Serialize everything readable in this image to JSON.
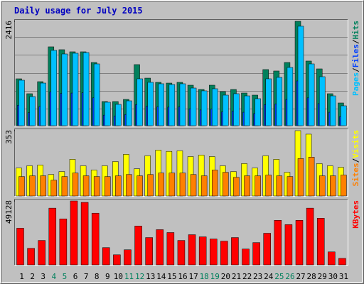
{
  "chart_data": [
    {
      "type": "bar",
      "title": "Daily usage for July 2015",
      "series": [
        {
          "name": "Hits",
          "color": "#00805c",
          "values": [
            1085,
            740,
            1019,
            1825,
            1759,
            1710,
            1710,
            1463,
            559,
            559,
            608,
            1414,
            1101,
            1003,
            986,
            1003,
            937,
            838,
            937,
            789,
            838,
            756,
            707,
            1299,
            1266,
            1463,
            2416,
            1496,
            1315,
            740,
            526
          ]
        },
        {
          "name": "Files",
          "color": "#0040ff",
          "values": [
            473,
            303,
            444,
            784,
            747,
            755,
            762,
            644,
            244,
            222,
            259,
            488,
            451,
            437,
            429,
            437,
            392,
            363,
            385,
            318,
            333,
            311,
            281,
            488,
            503,
            607,
            1036,
            644,
            510,
            311,
            207
          ]
        },
        {
          "name": "Pages",
          "color": "#00c0ff",
          "values": [
            1052,
            674,
            986,
            1743,
            1660,
            1677,
            1693,
            1430,
            543,
            493,
            575,
            1085,
            1003,
            970,
            953,
            970,
            871,
            806,
            855,
            707,
            740,
            690,
            625,
            1085,
            1118,
            1348,
            2302,
            1430,
            1134,
            690,
            460
          ]
        }
      ],
      "ylim": [
        0,
        2416
      ],
      "yticks": [
        2416
      ],
      "legend_separator": "/"
    },
    {
      "type": "bar",
      "series": [
        {
          "name": "Visits",
          "color": "#ffff00",
          "values": [
            151,
            163,
            167,
            116,
            132,
            198,
            163,
            140,
            163,
            186,
            225,
            147,
            217,
            248,
            241,
            244,
            213,
            221,
            213,
            163,
            132,
            175,
            151,
            217,
            198,
            128,
            353,
            334,
            175,
            163,
            155
          ]
        },
        {
          "name": "Sites",
          "color": "#ff8000",
          "values": [
            105,
            109,
            109,
            85,
            105,
            124,
            109,
            105,
            105,
            109,
            116,
            109,
            116,
            124,
            124,
            124,
            116,
            109,
            140,
            128,
            101,
            109,
            109,
            113,
            109,
            105,
            202,
            210,
            109,
            109,
            113
          ]
        }
      ],
      "ylim": [
        0,
        353
      ],
      "yticks": [
        353
      ],
      "legend_separator": "/"
    },
    {
      "type": "bar",
      "series": [
        {
          "name": "KBytes",
          "color": "#ff0000",
          "values": [
            28150,
            12700,
            18770,
            43600,
            35330,
            49128,
            48020,
            39740,
            13250,
            7730,
            11590,
            29810,
            20980,
            27050,
            24840,
            18770,
            23180,
            21530,
            19870,
            18220,
            20980,
            12140,
            17110,
            24290,
            34220,
            30910,
            34220,
            43600,
            35880,
            9940,
            4970
          ]
        }
      ],
      "ylim": [
        0,
        49128
      ],
      "yticks": [
        49128
      ],
      "categories": [
        "1",
        "2",
        "3",
        "4",
        "5",
        "6",
        "7",
        "8",
        "9",
        "10",
        "11",
        "12",
        "13",
        "14",
        "15",
        "16",
        "17",
        "18",
        "19",
        "20",
        "21",
        "22",
        "23",
        "24",
        "25",
        "26",
        "27",
        "28",
        "29",
        "30",
        "31"
      ],
      "category_colors": [
        "#000000",
        "#000000",
        "#000000",
        "#00805c",
        "#00805c",
        "#000000",
        "#000000",
        "#000000",
        "#000000",
        "#000000",
        "#00805c",
        "#00805c",
        "#000000",
        "#000000",
        "#000000",
        "#000000",
        "#000000",
        "#00805c",
        "#00805c",
        "#000000",
        "#000000",
        "#000000",
        "#000000",
        "#000000",
        "#00805c",
        "#00805c",
        "#000000",
        "#000000",
        "#000000",
        "#000000",
        "#000000"
      ]
    }
  ]
}
